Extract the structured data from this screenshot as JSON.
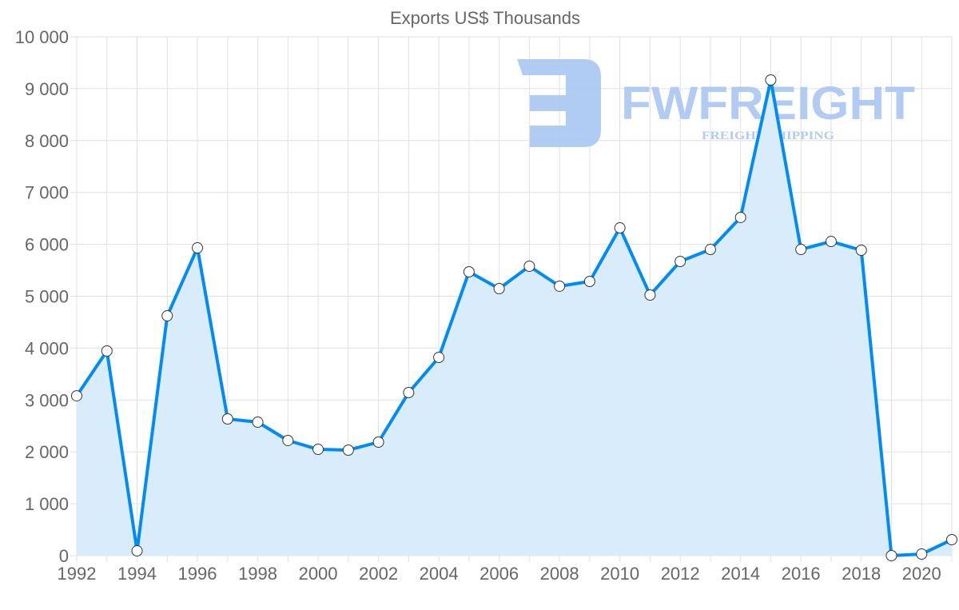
{
  "chart_data": {
    "type": "line",
    "title": "Exports US$ Thousands",
    "xlabel": "",
    "ylabel": "",
    "x": [
      1992,
      1993,
      1994,
      1995,
      1996,
      1997,
      1998,
      1999,
      2000,
      2001,
      2002,
      2003,
      2004,
      2005,
      2006,
      2007,
      2008,
      2009,
      2010,
      2011,
      2012,
      2013,
      2014,
      2015,
      2016,
      2017,
      2018,
      2019,
      2020,
      2021
    ],
    "series": [
      {
        "name": "Exports US$ Thousands",
        "values": [
          3080,
          3945,
          92,
          4622,
          5932,
          2635,
          2573,
          2219,
          2049,
          2034,
          2188,
          3143,
          3821,
          5470,
          5146,
          5578,
          5193,
          5285,
          6317,
          5023,
          5670,
          5901,
          6518,
          9168,
          5901,
          6055,
          5886,
          0,
          30,
          308
        ],
        "color": "#008cf5",
        "fill": "#d9ecfc"
      }
    ],
    "ylim": [
      0,
      10000
    ],
    "xlim": [
      1992,
      2021
    ],
    "y_ticks": [
      "0",
      "1 000",
      "2 000",
      "3 000",
      "4 000",
      "5 000",
      "6 000",
      "7 000",
      "8 000",
      "9 000",
      "10 000"
    ],
    "x_ticks": [
      "1992",
      "1994",
      "1996",
      "1998",
      "2000",
      "2002",
      "2004",
      "2006",
      "2008",
      "2010",
      "2012",
      "2014",
      "2016",
      "2018",
      "2020"
    ],
    "grid": true,
    "legend": "none"
  },
  "watermark": {
    "brand": "FWFREIGHT",
    "tagline": "FREIGHT SHIPPING",
    "color": "#a9c6f2"
  }
}
